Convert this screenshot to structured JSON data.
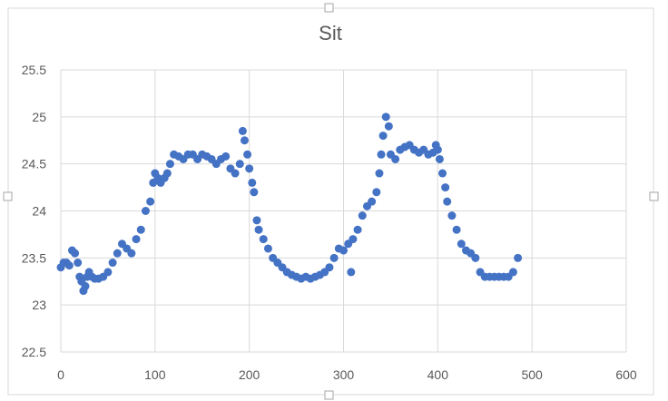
{
  "chart_data": {
    "type": "scatter",
    "title": "Sit",
    "xlabel": "",
    "ylabel": "",
    "xlim": [
      0,
      600
    ],
    "ylim": [
      22.5,
      25.5
    ],
    "xticks": [
      "0",
      "100",
      "200",
      "300",
      "400",
      "500",
      "600"
    ],
    "yticks": [
      "22.5",
      "23",
      "23.5",
      "24",
      "24.5",
      "25",
      "25.5"
    ],
    "grid": true,
    "legend": "none",
    "marker_color": "#4472c4",
    "series": [
      {
        "x": [
          0,
          3,
          6,
          9,
          12,
          15,
          18,
          20,
          22,
          24,
          26,
          28,
          30,
          33,
          36,
          40,
          45,
          50,
          55,
          60,
          65,
          70,
          75,
          80,
          85,
          90,
          95,
          98,
          100,
          103,
          106,
          110,
          113,
          116,
          120,
          125,
          130,
          135,
          140,
          145,
          150,
          155,
          160,
          165,
          170,
          175,
          180,
          185,
          190,
          193,
          195,
          198,
          200,
          203,
          205,
          208,
          210,
          215,
          220,
          225,
          230,
          235,
          240,
          245,
          250,
          255,
          260,
          265,
          270,
          275,
          280,
          285,
          290,
          295,
          300,
          305,
          308,
          310,
          315,
          320,
          325,
          330,
          335,
          338,
          340,
          342,
          345,
          348,
          350,
          355,
          360,
          365,
          370,
          375,
          380,
          385,
          390,
          395,
          398,
          400,
          402,
          405,
          408,
          410,
          415,
          420,
          425,
          430,
          435,
          440,
          445,
          450,
          455,
          460,
          465,
          470,
          475,
          480,
          485
        ],
        "y": [
          23.4,
          23.45,
          23.45,
          23.42,
          23.58,
          23.55,
          23.45,
          23.3,
          23.25,
          23.15,
          23.2,
          23.3,
          23.35,
          23.3,
          23.28,
          23.28,
          23.3,
          23.35,
          23.45,
          23.55,
          23.65,
          23.6,
          23.55,
          23.7,
          23.8,
          24.0,
          24.1,
          24.3,
          24.4,
          24.35,
          24.3,
          24.35,
          24.4,
          24.5,
          24.6,
          24.58,
          24.55,
          24.6,
          24.6,
          24.55,
          24.6,
          24.58,
          24.55,
          24.5,
          24.55,
          24.58,
          24.45,
          24.4,
          24.5,
          24.85,
          24.75,
          24.6,
          24.45,
          24.3,
          24.2,
          23.9,
          23.8,
          23.7,
          23.6,
          23.5,
          23.45,
          23.4,
          23.35,
          23.32,
          23.3,
          23.28,
          23.3,
          23.28,
          23.3,
          23.32,
          23.35,
          23.4,
          23.5,
          23.6,
          23.58,
          23.65,
          23.35,
          23.7,
          23.8,
          23.95,
          24.05,
          24.1,
          24.2,
          24.4,
          24.6,
          24.8,
          25.0,
          24.9,
          24.6,
          24.55,
          24.65,
          24.68,
          24.7,
          24.65,
          24.62,
          24.65,
          24.6,
          24.62,
          24.7,
          24.65,
          24.55,
          24.4,
          24.25,
          24.1,
          23.95,
          23.8,
          23.65,
          23.58,
          23.55,
          23.5,
          23.35,
          23.3,
          23.3,
          23.3,
          23.3,
          23.3,
          23.3,
          23.35,
          23.5
        ]
      }
    ]
  }
}
